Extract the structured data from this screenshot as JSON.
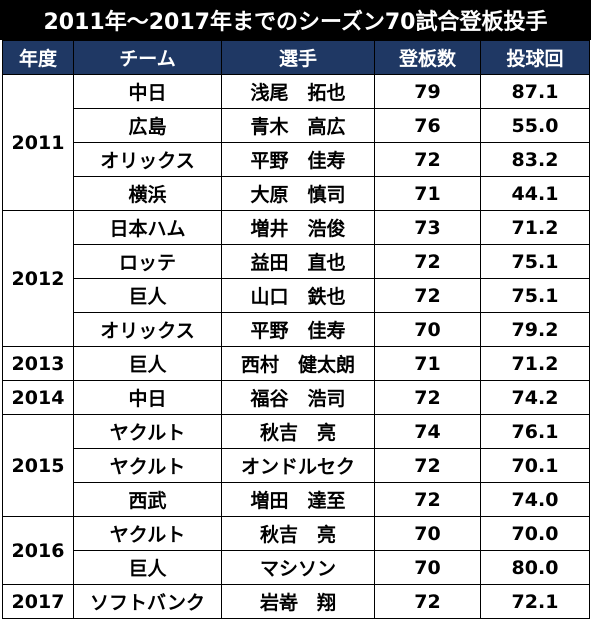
{
  "title": "2011年〜2017年までのシーズン70試合登板投手",
  "headers": {
    "year": "年度",
    "team": "チーム",
    "player": "選手",
    "games": "登板数",
    "innings": "投球回"
  },
  "colors": {
    "header_bg": "#1f3864",
    "title_bg": "#000000"
  },
  "groups": [
    {
      "year": "2011",
      "rows": [
        {
          "team": "中日",
          "player": "浅尾　拓也",
          "games": "79",
          "innings": "87.1"
        },
        {
          "team": "広島",
          "player": "青木　高広",
          "games": "76",
          "innings": "55.0"
        },
        {
          "team": "オリックス",
          "player": "平野　佳寿",
          "games": "72",
          "innings": "83.2"
        },
        {
          "team": "横浜",
          "player": "大原　慎司",
          "games": "71",
          "innings": "44.1"
        }
      ]
    },
    {
      "year": "2012",
      "rows": [
        {
          "team": "日本ハム",
          "player": "増井　浩俊",
          "games": "73",
          "innings": "71.2"
        },
        {
          "team": "ロッテ",
          "player": "益田　直也",
          "games": "72",
          "innings": "75.1"
        },
        {
          "team": "巨人",
          "player": "山口　鉄也",
          "games": "72",
          "innings": "75.1"
        },
        {
          "team": "オリックス",
          "player": "平野　佳寿",
          "games": "70",
          "innings": "79.2"
        }
      ]
    },
    {
      "year": "2013",
      "rows": [
        {
          "team": "巨人",
          "player": "西村　健太朗",
          "games": "71",
          "innings": "71.2"
        }
      ]
    },
    {
      "year": "2014",
      "rows": [
        {
          "team": "中日",
          "player": "福谷　浩司",
          "games": "72",
          "innings": "74.2"
        }
      ]
    },
    {
      "year": "2015",
      "rows": [
        {
          "team": "ヤクルト",
          "player": "秋吉　亮",
          "games": "74",
          "innings": "76.1"
        },
        {
          "team": "ヤクルト",
          "player": "オンドルセク",
          "games": "72",
          "innings": "70.1"
        },
        {
          "team": "西武",
          "player": "増田　達至",
          "games": "72",
          "innings": "74.0"
        }
      ]
    },
    {
      "year": "2016",
      "rows": [
        {
          "team": "ヤクルト",
          "player": "秋吉　亮",
          "games": "70",
          "innings": "70.0"
        },
        {
          "team": "巨人",
          "player": "マシソン",
          "games": "70",
          "innings": "80.0"
        }
      ]
    },
    {
      "year": "2017",
      "rows": [
        {
          "team": "ソフトバンク",
          "player": "岩嵜　翔",
          "games": "72",
          "innings": "72.1"
        }
      ]
    }
  ]
}
